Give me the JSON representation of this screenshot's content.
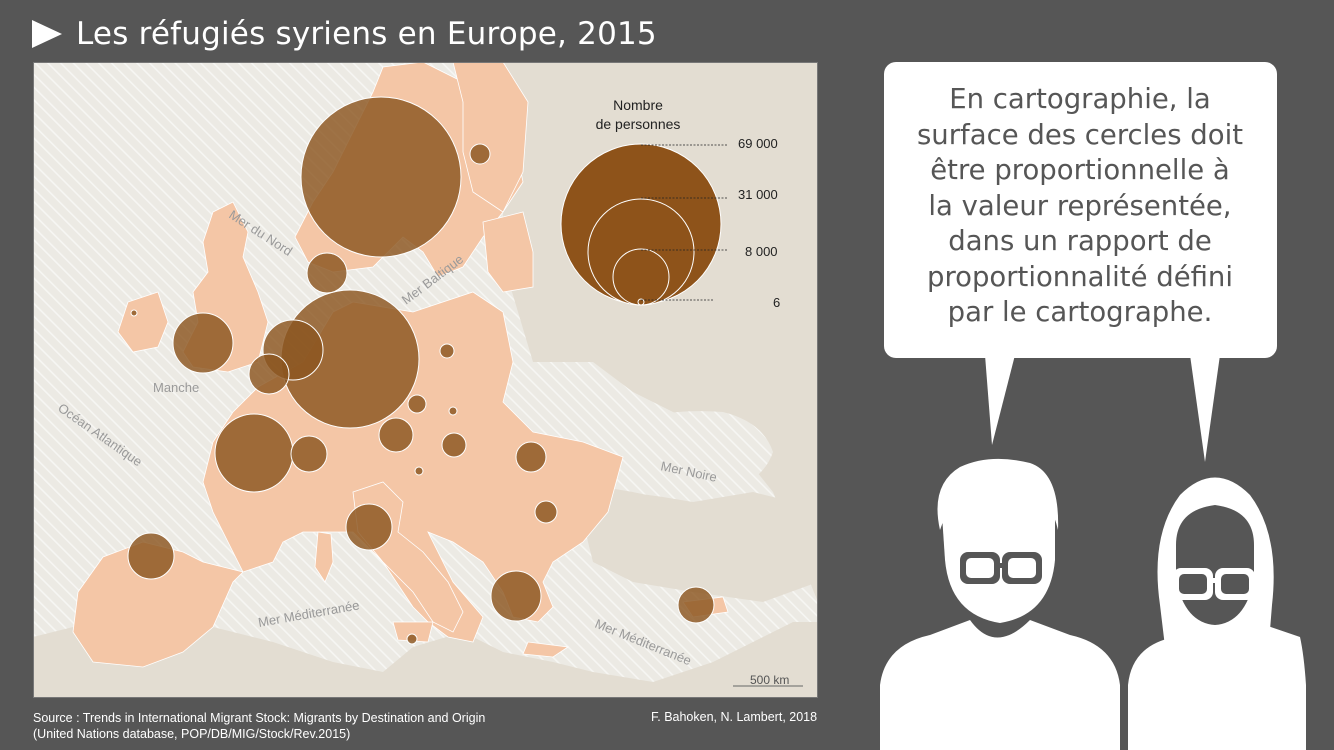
{
  "title": "Les réfugiés syriens en Europe, 2015",
  "source": {
    "line1": "Source : Trends in International Migrant Stock: Migrants by Destination and Origin",
    "line2": "(United Nations database, POP/DB/MIG/Stock/Rev.2015)"
  },
  "credit": "F. Bahoken, N. Lambert, 2018",
  "map": {
    "labels": {
      "mer_du_nord": "Mer du Nord",
      "mer_baltique": "Mer Baltique",
      "manche": "Manche",
      "ocean_atlantique": "Océan Atlantique",
      "mer_noire": "Mer Noire",
      "mediterranee_west": "Mer Méditerranée",
      "mediterranee_east": "Mer Méditerranée"
    },
    "scale_bar": "500 km",
    "legend": {
      "title_line1": "Nombre",
      "title_line2": "de personnes",
      "values": [
        "69 000",
        "31 000",
        "8 000",
        "6"
      ]
    }
  },
  "bubble": {
    "lines": [
      "En cartographie, la",
      "surface des cercles doit",
      "être proportionnelle à",
      "la valeur représentée,",
      "dans un rapport de",
      "proportionnalité défini",
      "par le cartographe."
    ]
  },
  "colors": {
    "background": "#565656",
    "sea": "#eceae4",
    "land_highlight": "#f4c6a6",
    "circle_fill": "#8b5520",
    "legend_fill": "#8e531a"
  },
  "icons": {
    "title": "play-triangle-icon",
    "people": "man-with-glasses-icon"
  }
}
